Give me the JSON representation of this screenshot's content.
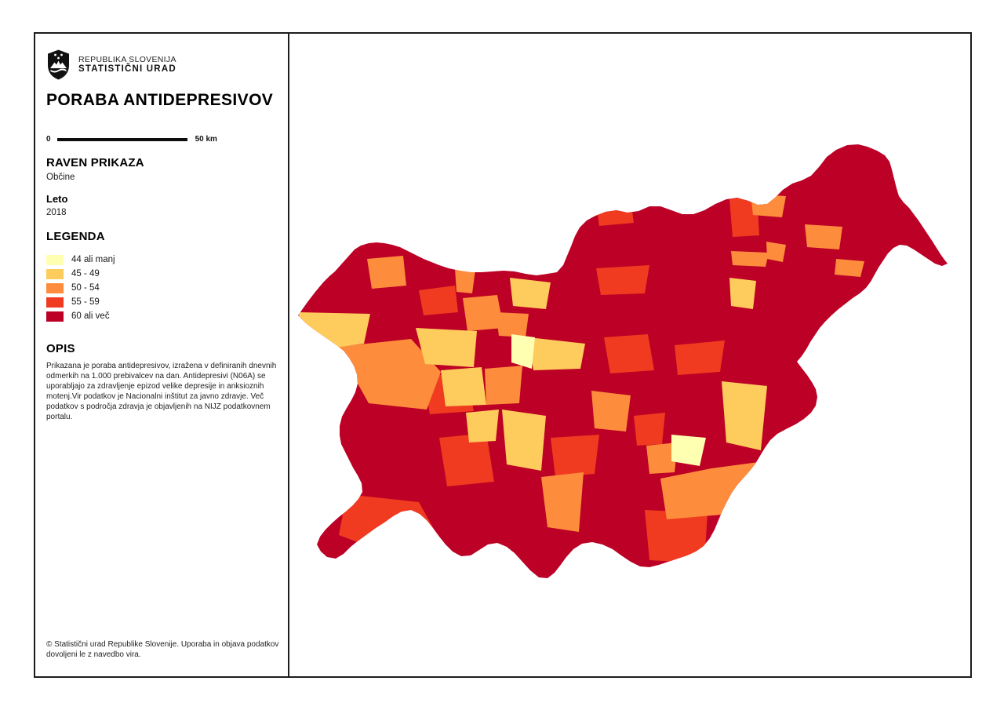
{
  "org": {
    "line1": "REPUBLIKA SLOVENIJA",
    "line2": "STATISTIČNI URAD"
  },
  "title": "PORABA ANTIDEPRESIVOV",
  "scale_bar": {
    "start_label": "0",
    "end_label": "50 km"
  },
  "sections": {
    "raven_prikaza": {
      "heading": "RAVEN PRIKAZA",
      "value": "Občine"
    },
    "leto": {
      "heading": "Leto",
      "value": "2018"
    },
    "legend": {
      "heading": "LEGENDA",
      "items": [
        {
          "label": "44 ali manj",
          "color": "#FFFFB2"
        },
        {
          "label": "45 - 49",
          "color": "#FECC5C"
        },
        {
          "label": "50 - 54",
          "color": "#FD8D3C"
        },
        {
          "label": "55 - 59",
          "color": "#F03B20"
        },
        {
          "label": "60 ali več",
          "color": "#BD0026"
        }
      ]
    },
    "opis": {
      "heading": "OPIS",
      "text": "Prikazana je poraba antidepresivov, izražena v definiranih dnevnih odmerkih na 1.000 prebivalcev na dan. Antidepresivi (N06A) se uporabljajo za zdravljenje epizod velike depresije in anksioznih motenj.Vir podatkov je Nacionalni inštitut za javno zdravje. Več podatkov s področja zdravja je objavljenih na NIJZ podatkovnem portalu."
    }
  },
  "footer": {
    "text": "© Statistični urad Republike Slovenije. Uporaba in objava podatkov dovoljeni le z navedbo vira."
  },
  "map": {
    "region": "Slovenija",
    "type": "choropleth",
    "unit": "definirani dnevni odmerki na 1.000 prebivalcev na dan",
    "background": "#FFFFFF",
    "base_class_color": "#BD0026"
  }
}
